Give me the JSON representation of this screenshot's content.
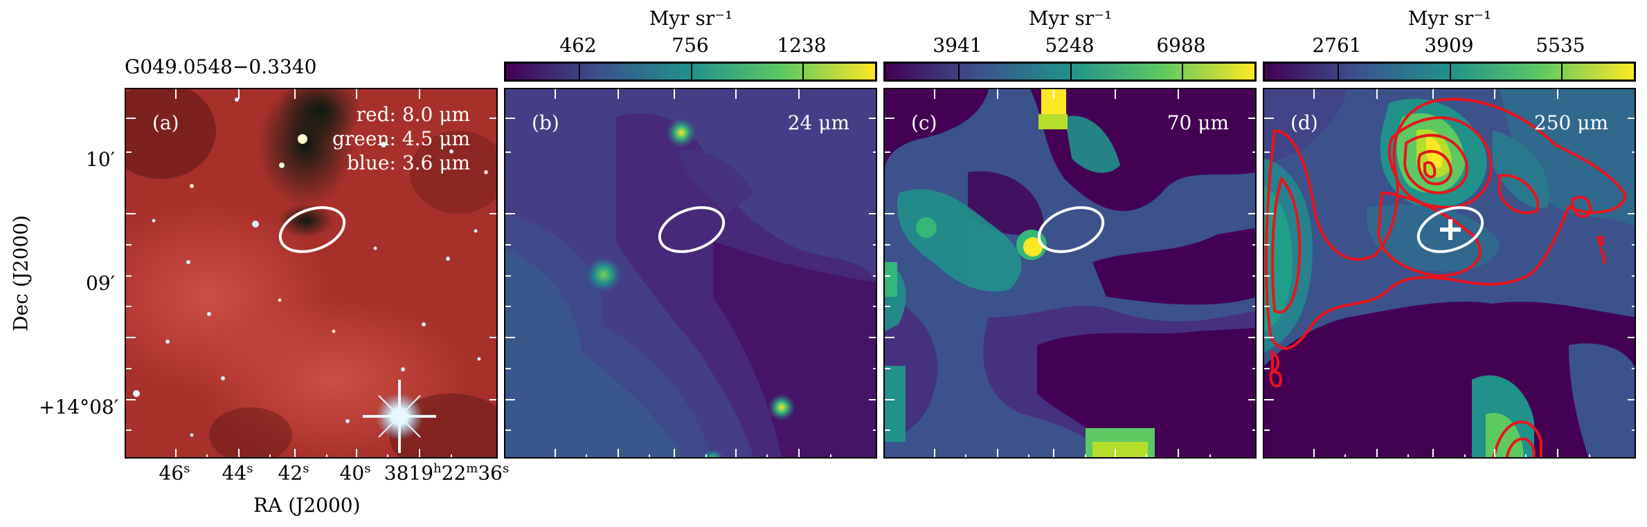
{
  "source_name": "G049.0548−0.3340",
  "y_axis_label": "Dec (J2000)",
  "x_axis_label": "RA (J2000)",
  "y_ticks": [
    {
      "main": "10′"
    },
    {
      "main": "09′"
    },
    {
      "main": "+14°08′"
    }
  ],
  "x_ticks": [
    {
      "main": "46",
      "sup": "s"
    },
    {
      "main": "44",
      "sup": "s"
    },
    {
      "main": "42",
      "sup": "s"
    },
    {
      "main": "40",
      "sup": "s"
    },
    {
      "main": "38",
      "sup": ""
    },
    {
      "main": "19",
      "sup": "h"
    },
    {
      "main": "22",
      "sup": "m"
    },
    {
      "main": "36",
      "sup": "s"
    }
  ],
  "panels": [
    {
      "id": "a",
      "label": "(a)",
      "band_lines": [
        "red: 8.0 μm",
        "green: 4.5 μm",
        "blue: 3.6 μm"
      ]
    },
    {
      "id": "b",
      "label": "(b)",
      "band": "24 μm",
      "colorbar": {
        "unit": "Myr sr⁻¹",
        "ticks": [
          "462",
          "756",
          "1238"
        ]
      }
    },
    {
      "id": "c",
      "label": "(c)",
      "band": "70 μm",
      "colorbar": {
        "unit": "Myr sr⁻¹",
        "ticks": [
          "3941",
          "5248",
          "6988"
        ]
      }
    },
    {
      "id": "d",
      "label": "(d)",
      "band": "250 μm",
      "colorbar": {
        "unit": "Myr sr⁻¹",
        "ticks": [
          "2761",
          "3909",
          "5535"
        ]
      }
    }
  ],
  "colors": {
    "viridis_low": "#440154",
    "viridis_mid": "#21918c",
    "viridis_high": "#fde725",
    "contour": "#e8141c",
    "ellipse": "#ffffff",
    "rgb_background": "#a8302a"
  }
}
